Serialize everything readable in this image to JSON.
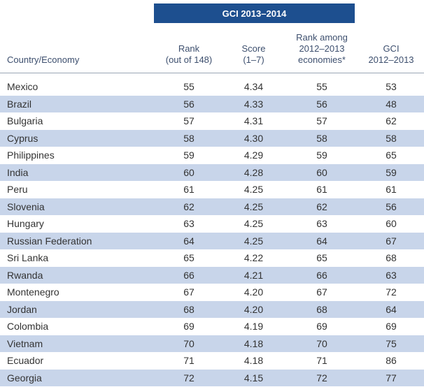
{
  "table": {
    "group_header": "GCI 2013–2014",
    "columns": [
      {
        "lines": [
          "Country/Economy"
        ]
      },
      {
        "lines": [
          "Rank",
          "(out of 148)"
        ]
      },
      {
        "lines": [
          "Score",
          "(1–7)"
        ]
      },
      {
        "lines": [
          "Rank among",
          "2012–2013",
          "economies*"
        ]
      },
      {
        "lines": [
          "GCI",
          "2012–2013"
        ]
      }
    ],
    "rows": [
      [
        "Mexico",
        "55",
        "4.34",
        "55",
        "53"
      ],
      [
        "Brazil",
        "56",
        "4.33",
        "56",
        "48"
      ],
      [
        "Bulgaria",
        "57",
        "4.31",
        "57",
        "62"
      ],
      [
        "Cyprus",
        "58",
        "4.30",
        "58",
        "58"
      ],
      [
        "Philippines",
        "59",
        "4.29",
        "59",
        "65"
      ],
      [
        "India",
        "60",
        "4.28",
        "60",
        "59"
      ],
      [
        "Peru",
        "61",
        "4.25",
        "61",
        "61"
      ],
      [
        "Slovenia",
        "62",
        "4.25",
        "62",
        "56"
      ],
      [
        "Hungary",
        "63",
        "4.25",
        "63",
        "60"
      ],
      [
        "Russian Federation",
        "64",
        "4.25",
        "64",
        "67"
      ],
      [
        "Sri Lanka",
        "65",
        "4.22",
        "65",
        "68"
      ],
      [
        "Rwanda",
        "66",
        "4.21",
        "66",
        "63"
      ],
      [
        "Montenegro",
        "67",
        "4.20",
        "67",
        "72"
      ],
      [
        "Jordan",
        "68",
        "4.20",
        "68",
        "64"
      ],
      [
        "Colombia",
        "69",
        "4.19",
        "69",
        "69"
      ],
      [
        "Vietnam",
        "70",
        "4.18",
        "70",
        "75"
      ],
      [
        "Ecuador",
        "71",
        "4.18",
        "71",
        "86"
      ],
      [
        "Georgia",
        "72",
        "4.15",
        "72",
        "77"
      ]
    ]
  }
}
